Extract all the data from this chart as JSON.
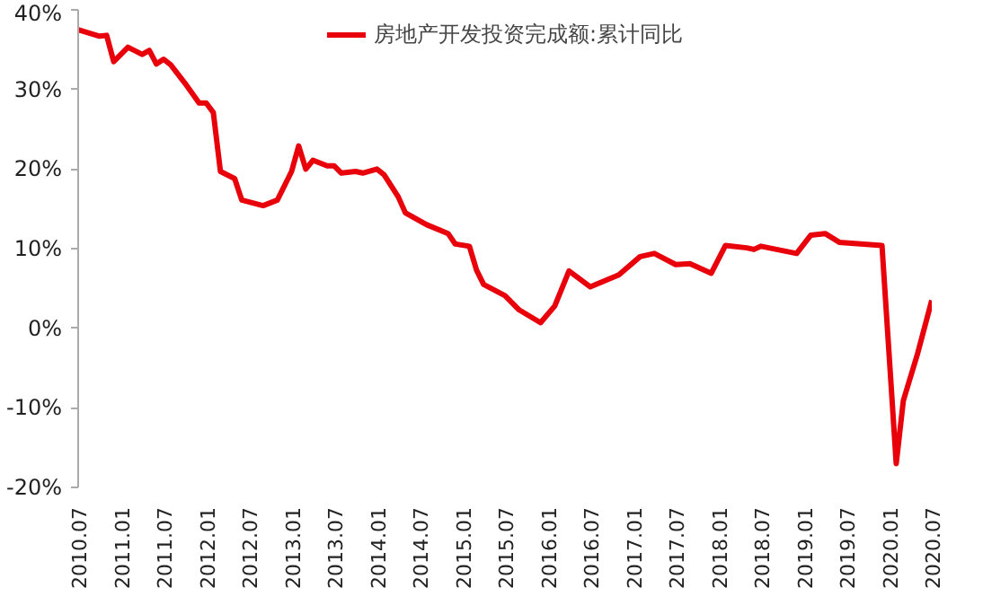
{
  "chart_data": {
    "type": "line",
    "x": [
      "2010-07",
      "2010-10",
      "2010-11",
      "2010-12",
      "2011-02",
      "2011-04",
      "2011-05",
      "2011-06",
      "2011-07",
      "2011-08",
      "2011-10",
      "2011-12",
      "2012-01",
      "2012-02",
      "2012-03",
      "2012-05",
      "2012-06",
      "2012-09",
      "2012-11",
      "2013-01",
      "2013-02",
      "2013-03",
      "2013-04",
      "2013-06",
      "2013-07",
      "2013-08",
      "2013-10",
      "2013-11",
      "2014-01",
      "2014-02",
      "2014-04",
      "2014-05",
      "2014-08",
      "2014-11",
      "2014-12",
      "2015-02",
      "2015-03",
      "2015-04",
      "2015-07",
      "2015-09",
      "2015-12",
      "2016-02",
      "2016-04",
      "2016-07",
      "2016-11",
      "2017-02",
      "2017-04",
      "2017-07",
      "2017-09",
      "2017-12",
      "2018-02",
      "2018-05",
      "2018-06",
      "2018-07",
      "2018-12",
      "2019-02",
      "2019-04",
      "2019-06",
      "2019-09",
      "2019-12",
      "2020-02",
      "2020-03",
      "2020-05",
      "2020-07"
    ],
    "series": [
      {
        "name": "房地产开发投资完成额:累计同比",
        "color": "#e8000b",
        "values": [
          37.5,
          36.7,
          36.8,
          33.5,
          35.3,
          34.4,
          34.9,
          33.2,
          33.8,
          33.1,
          30.8,
          28.3,
          28.3,
          27.1,
          19.7,
          18.8,
          16.1,
          15.4,
          16.1,
          19.7,
          22.9,
          20.0,
          21.1,
          20.4,
          20.4,
          19.5,
          19.7,
          19.5,
          20.0,
          19.3,
          16.5,
          14.5,
          13.0,
          11.9,
          10.6,
          10.3,
          7.3,
          5.5,
          4.1,
          2.3,
          0.7,
          2.8,
          7.2,
          5.2,
          6.7,
          9.0,
          9.4,
          8.0,
          8.1,
          6.9,
          10.4,
          10.1,
          9.9,
          10.3,
          9.4,
          11.7,
          11.9,
          10.8,
          10.6,
          10.4,
          -17.0,
          -9.1,
          -3.2,
          3.5
        ]
      }
    ],
    "xlim": [
      "2010-07",
      "2020-07"
    ],
    "xticks": [
      {
        "value": "2010-07",
        "label": "2010.07"
      },
      {
        "value": "2011-01",
        "label": "2011.01"
      },
      {
        "value": "2011-07",
        "label": "2011.07"
      },
      {
        "value": "2012-01",
        "label": "2012.01"
      },
      {
        "value": "2012-07",
        "label": "2012.07"
      },
      {
        "value": "2013-01",
        "label": "2013.01"
      },
      {
        "value": "2013-07",
        "label": "2013.07"
      },
      {
        "value": "2014-01",
        "label": "2014.01"
      },
      {
        "value": "2014-07",
        "label": "2014.07"
      },
      {
        "value": "2015-01",
        "label": "2015.01"
      },
      {
        "value": "2015-07",
        "label": "2015.07"
      },
      {
        "value": "2016-01",
        "label": "2016.01"
      },
      {
        "value": "2016-07",
        "label": "2016.07"
      },
      {
        "value": "2017-01",
        "label": "2017.01"
      },
      {
        "value": "2017-07",
        "label": "2017.07"
      },
      {
        "value": "2018-01",
        "label": "2018.01"
      },
      {
        "value": "2018-07",
        "label": "2018.07"
      },
      {
        "value": "2019-01",
        "label": "2019.01"
      },
      {
        "value": "2019-07",
        "label": "2019.07"
      },
      {
        "value": "2020-01",
        "label": "2020.01"
      },
      {
        "value": "2020-07",
        "label": "2020.07"
      }
    ],
    "ylim": [
      -20,
      40
    ],
    "yticks": [
      {
        "value": -20,
        "label": "-20%"
      },
      {
        "value": -10,
        "label": "-10%"
      },
      {
        "value": 0,
        "label": "0%"
      },
      {
        "value": 10,
        "label": "10%"
      },
      {
        "value": 20,
        "label": "20%"
      },
      {
        "value": 30,
        "label": "30%"
      },
      {
        "value": 40,
        "label": "40%"
      }
    ],
    "grid": false,
    "legend": "top",
    "marker": "none",
    "line_style": "solid"
  }
}
